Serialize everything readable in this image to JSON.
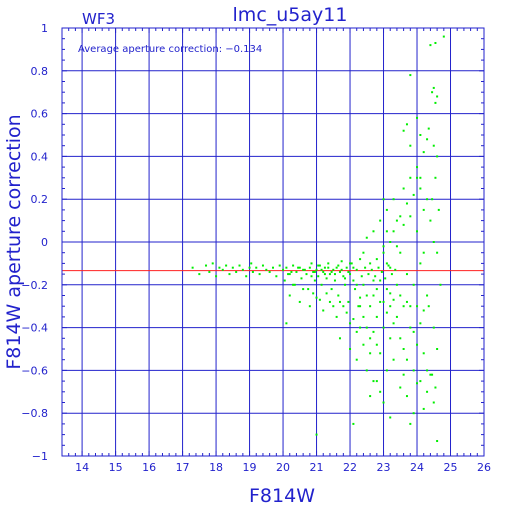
{
  "chart_data": {
    "type": "scatter",
    "title": "lmc_u5ay11",
    "panel_label": "WF3",
    "annotation": "Average aperture correction: −0.134",
    "xlabel": "F814W",
    "ylabel": "F814W aperture correction",
    "xlim": [
      13.4,
      26
    ],
    "ylim": [
      -1,
      1
    ],
    "x_ticks": [
      14,
      15,
      16,
      17,
      18,
      19,
      20,
      21,
      22,
      23,
      24,
      25,
      26
    ],
    "y_ticks": [
      -1,
      -0.8,
      -0.6,
      -0.4,
      -0.2,
      0,
      0.2,
      0.4,
      0.6,
      0.8,
      1
    ],
    "x_tick_labels": [
      "14",
      "15",
      "16",
      "17",
      "18",
      "19",
      "20",
      "21",
      "22",
      "23",
      "24",
      "25",
      "26"
    ],
    "y_tick_labels": [
      "−1",
      "−0.8",
      "−0.6",
      "−0.4",
      "−0.2",
      "0",
      "0.2",
      "0.4",
      "0.6",
      "0.8",
      "1"
    ],
    "average_correction": -0.134,
    "grid": true,
    "colors": {
      "axes": "#2222cc",
      "points": "#00ee00",
      "average_line": "#ff2020"
    },
    "points": [
      [
        17.3,
        -0.12
      ],
      [
        17.5,
        -0.15
      ],
      [
        17.7,
        -0.11
      ],
      [
        17.8,
        -0.14
      ],
      [
        17.9,
        -0.1
      ],
      [
        18.0,
        -0.16
      ],
      [
        18.1,
        -0.12
      ],
      [
        18.2,
        -0.13
      ],
      [
        18.3,
        -0.11
      ],
      [
        18.4,
        -0.15
      ],
      [
        18.5,
        -0.12
      ],
      [
        18.6,
        -0.14
      ],
      [
        18.7,
        -0.11
      ],
      [
        18.8,
        -0.13
      ],
      [
        18.9,
        -0.16
      ],
      [
        19.0,
        -0.12
      ],
      [
        19.05,
        -0.1
      ],
      [
        19.1,
        -0.14
      ],
      [
        19.2,
        -0.12
      ],
      [
        19.3,
        -0.15
      ],
      [
        19.4,
        -0.11
      ],
      [
        19.5,
        -0.13
      ],
      [
        19.6,
        -0.14
      ],
      [
        19.7,
        -0.12
      ],
      [
        19.8,
        -0.16
      ],
      [
        19.9,
        -0.11
      ],
      [
        20.0,
        -0.13
      ],
      [
        20.05,
        -0.18
      ],
      [
        20.1,
        -0.12
      ],
      [
        20.2,
        -0.15
      ],
      [
        20.3,
        -0.11
      ],
      [
        20.35,
        -0.2
      ],
      [
        20.4,
        -0.14
      ],
      [
        20.5,
        -0.12
      ],
      [
        20.55,
        -0.17
      ],
      [
        20.6,
        -0.13
      ],
      [
        20.7,
        -0.15
      ],
      [
        20.75,
        -0.22
      ],
      [
        20.8,
        -0.12
      ],
      [
        20.85,
        -0.1
      ],
      [
        20.9,
        -0.14
      ],
      [
        20.95,
        -0.18
      ],
      [
        21.0,
        -0.13
      ],
      [
        21.05,
        -0.16
      ],
      [
        21.1,
        -0.11
      ],
      [
        21.15,
        -0.2
      ],
      [
        21.2,
        -0.14
      ],
      [
        21.25,
        -0.12
      ],
      [
        21.3,
        -0.17
      ],
      [
        21.35,
        -0.1
      ],
      [
        21.4,
        -0.15
      ],
      [
        21.45,
        -0.22
      ],
      [
        21.5,
        -0.13
      ],
      [
        21.55,
        -0.18
      ],
      [
        21.6,
        -0.12
      ],
      [
        21.65,
        -0.25
      ],
      [
        21.7,
        -0.14
      ],
      [
        21.75,
        -0.09
      ],
      [
        21.8,
        -0.16
      ],
      [
        21.85,
        -0.2
      ],
      [
        21.9,
        -0.12
      ],
      [
        21.95,
        -0.28
      ],
      [
        22.0,
        -0.15
      ],
      [
        22.05,
        -0.1
      ],
      [
        22.1,
        -0.18
      ],
      [
        22.15,
        -0.22
      ],
      [
        22.2,
        -0.13
      ],
      [
        22.25,
        -0.3
      ],
      [
        22.3,
        -0.08
      ],
      [
        22.35,
        -0.16
      ],
      [
        20.2,
        -0.25
      ],
      [
        20.5,
        -0.28
      ],
      [
        20.8,
        -0.3
      ],
      [
        21.0,
        -0.26
      ],
      [
        21.2,
        -0.32
      ],
      [
        21.4,
        -0.28
      ],
      [
        21.6,
        -0.35
      ],
      [
        21.8,
        -0.3
      ],
      [
        22.0,
        -0.38
      ],
      [
        22.2,
        -0.42
      ],
      [
        20.3,
        -0.2
      ],
      [
        20.6,
        -0.22
      ],
      [
        20.9,
        -0.24
      ],
      [
        21.1,
        -0.27
      ],
      [
        21.3,
        -0.24
      ],
      [
        21.5,
        -0.3
      ],
      [
        21.7,
        -0.28
      ],
      [
        21.9,
        -0.33
      ],
      [
        22.1,
        -0.36
      ],
      [
        22.3,
        -0.4
      ],
      [
        20.1,
        -0.38
      ],
      [
        21.0,
        -0.9
      ],
      [
        22.1,
        -0.85
      ],
      [
        21.7,
        -0.45
      ],
      [
        22.0,
        -0.5
      ],
      [
        22.2,
        -0.55
      ],
      [
        22.4,
        -0.48
      ],
      [
        22.5,
        -0.6
      ],
      [
        22.6,
        -0.52
      ],
      [
        22.7,
        -0.65
      ],
      [
        22.4,
        -0.05
      ],
      [
        22.5,
        0.02
      ],
      [
        22.6,
        -0.1
      ],
      [
        22.7,
        0.05
      ],
      [
        22.8,
        -0.08
      ],
      [
        22.9,
        0.1
      ],
      [
        23.0,
        -0.02
      ],
      [
        23.1,
        0.15
      ],
      [
        23.2,
        0.0
      ],
      [
        23.3,
        0.2
      ],
      [
        22.4,
        -0.2
      ],
      [
        22.5,
        -0.25
      ],
      [
        22.6,
        -0.3
      ],
      [
        22.7,
        -0.18
      ],
      [
        22.8,
        -0.35
      ],
      [
        22.9,
        -0.28
      ],
      [
        23.0,
        -0.4
      ],
      [
        23.1,
        -0.33
      ],
      [
        23.2,
        -0.45
      ],
      [
        23.3,
        -0.38
      ],
      [
        22.45,
        -0.12
      ],
      [
        22.55,
        -0.15
      ],
      [
        22.65,
        -0.13
      ],
      [
        22.75,
        -0.16
      ],
      [
        22.85,
        -0.12
      ],
      [
        22.95,
        -0.14
      ],
      [
        23.05,
        -0.17
      ],
      [
        23.15,
        -0.11
      ],
      [
        23.25,
        -0.15
      ],
      [
        23.35,
        -0.13
      ],
      [
        23.4,
        0.1
      ],
      [
        23.5,
        -0.05
      ],
      [
        23.6,
        0.25
      ],
      [
        23.7,
        -0.15
      ],
      [
        23.8,
        0.3
      ],
      [
        23.9,
        -0.2
      ],
      [
        24.0,
        0.35
      ],
      [
        24.1,
        -0.1
      ],
      [
        24.2,
        0.15
      ],
      [
        24.3,
        -0.25
      ],
      [
        23.4,
        -0.35
      ],
      [
        23.5,
        -0.45
      ],
      [
        23.6,
        -0.5
      ],
      [
        23.7,
        -0.55
      ],
      [
        23.8,
        -0.4
      ],
      [
        23.9,
        -0.6
      ],
      [
        24.0,
        -0.48
      ],
      [
        24.1,
        -0.65
      ],
      [
        24.2,
        -0.52
      ],
      [
        24.3,
        -0.7
      ],
      [
        23.6,
        0.52
      ],
      [
        23.7,
        0.55
      ],
      [
        23.8,
        0.45
      ],
      [
        24.0,
        0.58
      ],
      [
        24.1,
        0.5
      ],
      [
        24.2,
        0.42
      ],
      [
        24.3,
        0.48
      ],
      [
        24.35,
        0.53
      ],
      [
        24.5,
        0.45
      ],
      [
        24.6,
        0.4
      ],
      [
        24.4,
        0.92
      ],
      [
        24.55,
        0.93
      ],
      [
        24.8,
        0.96
      ],
      [
        24.5,
        0.72
      ],
      [
        24.6,
        0.68
      ],
      [
        24.55,
        0.65
      ],
      [
        24.45,
        0.7
      ],
      [
        23.8,
        0.78
      ],
      [
        24.0,
        0.3
      ],
      [
        24.1,
        0.25
      ],
      [
        24.4,
        0.1
      ],
      [
        24.5,
        0.0
      ],
      [
        24.6,
        -0.05
      ],
      [
        24.45,
        0.2
      ],
      [
        24.55,
        0.3
      ],
      [
        24.35,
        -0.3
      ],
      [
        24.5,
        -0.4
      ],
      [
        24.6,
        -0.5
      ],
      [
        24.45,
        -0.62
      ],
      [
        24.55,
        -0.68
      ],
      [
        24.5,
        -0.75
      ],
      [
        24.6,
        -0.93
      ],
      [
        24.4,
        -0.62
      ],
      [
        24.7,
        -0.2
      ],
      [
        24.65,
        0.15
      ],
      [
        24.3,
        -0.6
      ],
      [
        24.2,
        -0.78
      ],
      [
        24.0,
        -0.66
      ],
      [
        23.9,
        -0.8
      ],
      [
        23.8,
        -0.85
      ],
      [
        23.0,
        -0.75
      ],
      [
        22.9,
        -0.7
      ],
      [
        22.8,
        -0.65
      ],
      [
        22.6,
        -0.72
      ],
      [
        23.2,
        -0.82
      ],
      [
        23.1,
        -0.6
      ],
      [
        23.3,
        -0.55
      ],
      [
        23.5,
        -0.68
      ],
      [
        23.7,
        -0.72
      ],
      [
        23.6,
        -0.62
      ],
      [
        22.3,
        -0.26
      ],
      [
        22.2,
        -0.2
      ],
      [
        22.1,
        -0.12
      ],
      [
        22.0,
        -0.1
      ],
      [
        21.95,
        -0.14
      ],
      [
        21.85,
        -0.17
      ],
      [
        21.75,
        -0.13
      ],
      [
        21.65,
        -0.11
      ],
      [
        21.55,
        -0.15
      ],
      [
        21.45,
        -0.14
      ],
      [
        21.35,
        -0.12
      ],
      [
        21.25,
        -0.15
      ],
      [
        21.15,
        -0.13
      ],
      [
        21.05,
        -0.11
      ],
      [
        20.95,
        -0.14
      ],
      [
        20.85,
        -0.16
      ],
      [
        20.65,
        -0.13
      ],
      [
        20.45,
        -0.12
      ],
      [
        20.25,
        -0.14
      ],
      [
        20.15,
        -0.15
      ],
      [
        23.0,
        0.2
      ],
      [
        23.1,
        0.05
      ],
      [
        23.2,
        -0.12
      ],
      [
        23.3,
        0.05
      ],
      [
        23.4,
        -0.02
      ],
      [
        23.5,
        0.12
      ],
      [
        23.6,
        0.08
      ],
      [
        23.7,
        0.18
      ],
      [
        23.8,
        0.12
      ],
      [
        23.9,
        0.22
      ],
      [
        24.0,
        0.05
      ],
      [
        24.1,
        0.3
      ],
      [
        24.2,
        -0.05
      ],
      [
        24.3,
        0.2
      ],
      [
        24.0,
        -0.3
      ],
      [
        24.1,
        -0.38
      ],
      [
        24.2,
        -0.32
      ],
      [
        23.9,
        -0.42
      ],
      [
        23.8,
        -0.3
      ],
      [
        23.7,
        -0.28
      ],
      [
        22.7,
        -0.42
      ],
      [
        22.8,
        -0.48
      ],
      [
        22.9,
        -0.52
      ],
      [
        23.0,
        -0.28
      ],
      [
        23.1,
        -0.22
      ],
      [
        23.2,
        -0.3
      ],
      [
        22.5,
        -0.4
      ],
      [
        22.6,
        -0.45
      ],
      [
        22.3,
        -0.3
      ],
      [
        22.4,
        -0.35
      ],
      [
        23.0,
        -0.05
      ],
      [
        22.9,
        -0.18
      ],
      [
        22.8,
        -0.22
      ],
      [
        22.7,
        -0.25
      ],
      [
        23.4,
        -0.2
      ],
      [
        23.5,
        -0.25
      ],
      [
        23.6,
        -0.3
      ],
      [
        23.3,
        -0.27
      ],
      [
        23.2,
        -0.24
      ],
      [
        23.1,
        -0.1
      ]
    ]
  }
}
